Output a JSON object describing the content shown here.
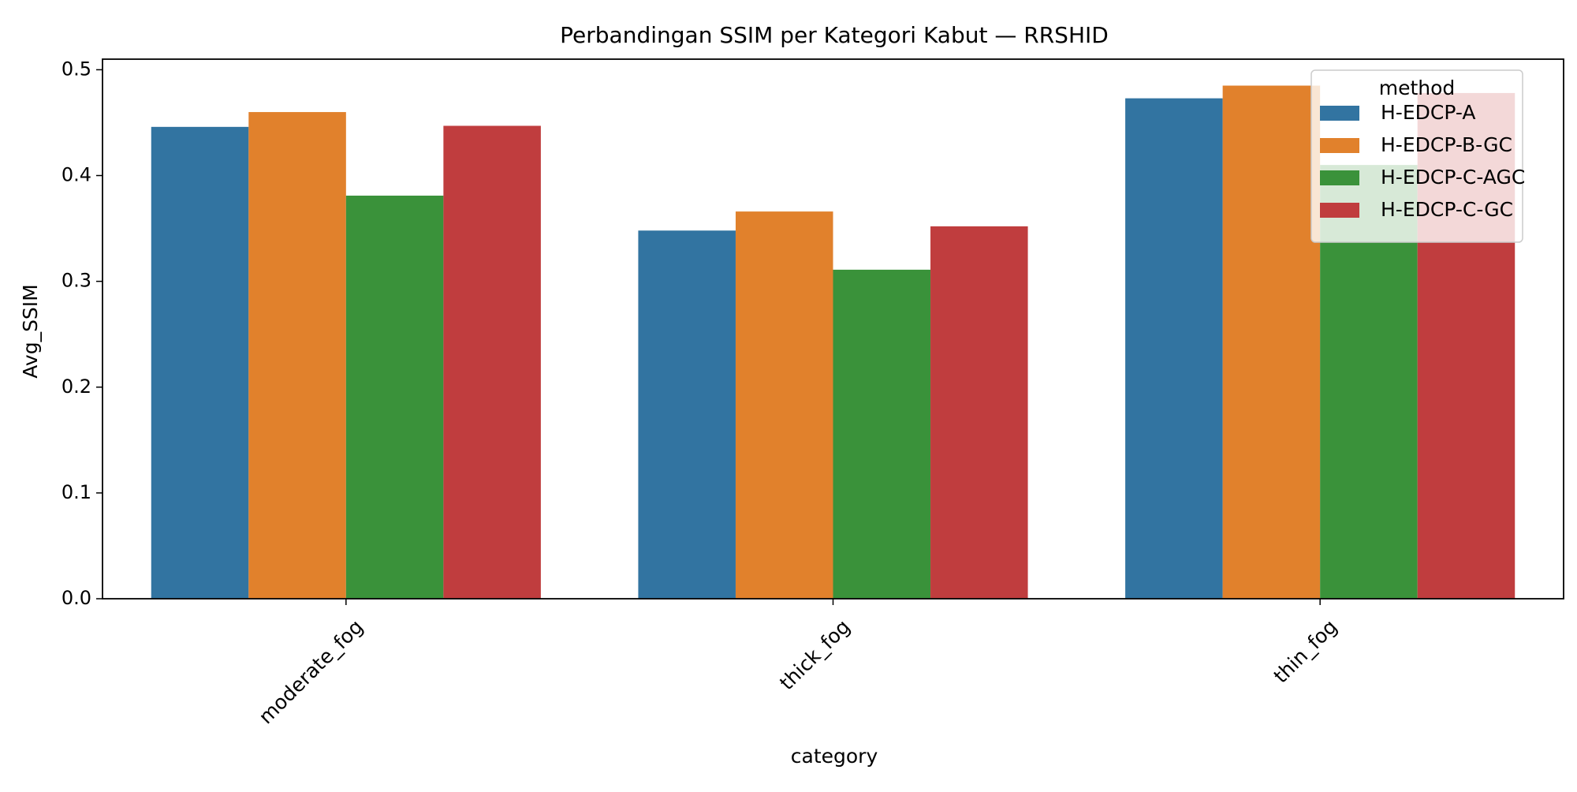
{
  "chart_data": {
    "type": "bar",
    "title": "Perbandingan SSIM per Kategori Kabut — RRSHID",
    "xlabel": "category",
    "ylabel": "Avg_SSIM",
    "ylim": [
      0,
      0.51
    ],
    "yticks": [
      "0.0",
      "0.1",
      "0.2",
      "0.3",
      "0.4",
      "0.5"
    ],
    "categories": [
      "moderate_fog",
      "thick_fog",
      "thin_fog"
    ],
    "legend_title": "method",
    "legend_position": "top-right",
    "series": [
      {
        "name": "H-EDCP-A",
        "color": "#3274a1",
        "values": [
          0.446,
          0.348,
          0.473
        ]
      },
      {
        "name": "H-EDCP-B-GC",
        "color": "#e1812c",
        "values": [
          0.46,
          0.366,
          0.485
        ]
      },
      {
        "name": "H-EDCP-C-AGC",
        "color": "#3a923a",
        "values": [
          0.381,
          0.311,
          0.41
        ]
      },
      {
        "name": "H-EDCP-C-GC",
        "color": "#c03d3e",
        "values": [
          0.447,
          0.352,
          0.478
        ]
      }
    ]
  }
}
